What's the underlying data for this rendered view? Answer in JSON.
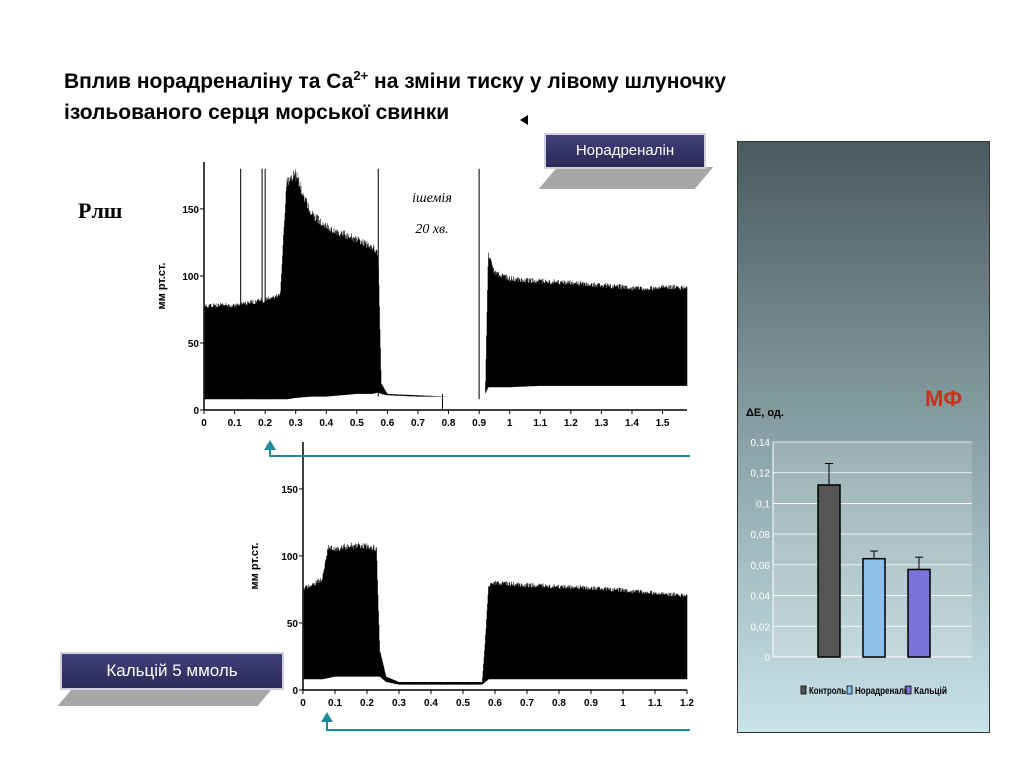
{
  "title": {
    "line1_a": "Вплив норадреналіну та Са",
    "line1_sup": "2+",
    "line1_b": " на зміни тиску у лівому шлуночку",
    "line2": "ізольованого серця морської свинки"
  },
  "plsh_label": "Рлш",
  "labels": {
    "noradrenaline": "Норадреналін",
    "calcium": "Кальцій 5 ммоль"
  },
  "ischemia": {
    "line1": "ішемія",
    "line2": "20 хв."
  },
  "mf_label": "МФ",
  "colors": {
    "label_bg": "#2f2f63",
    "arrow": "#1f8a9a",
    "trace": "#000000",
    "mf_title": "#c8321a"
  },
  "chart_data": [
    {
      "type": "line",
      "name": "top-trace",
      "ylabel": "мм рт.ст.",
      "y_ticks": [
        "0",
        "50",
        "100",
        "150"
      ],
      "x_ticks": [
        "0",
        "0.1",
        "0.2",
        "0.3",
        "0.4",
        "0.5",
        "0.6",
        "0.7",
        "0.8",
        "0.9",
        "1",
        "1.1",
        "1.2",
        "1.3",
        "1.4",
        "1.5"
      ],
      "xlim": [
        0,
        1.58
      ],
      "ylim": [
        0,
        185
      ],
      "envelope": {
        "x": [
          0,
          0.1,
          0.2,
          0.22,
          0.25,
          0.27,
          0.3,
          0.35,
          0.4,
          0.45,
          0.5,
          0.55,
          0.57,
          0.58,
          0.6,
          0.7,
          0.8,
          0.9,
          0.92,
          0.93,
          0.95,
          1.0,
          1.1,
          1.2,
          1.3,
          1.4,
          1.45,
          1.5,
          1.58
        ],
        "upper": [
          80,
          80,
          84,
          85,
          88,
          175,
          180,
          150,
          140,
          135,
          130,
          125,
          120,
          20,
          12,
          11,
          10,
          10,
          12,
          120,
          105,
          100,
          98,
          97,
          95,
          93,
          92,
          94,
          93
        ],
        "lower": [
          8,
          8,
          8,
          8,
          8,
          8,
          9,
          10,
          10,
          11,
          12,
          12,
          13,
          12,
          11,
          10,
          10,
          10,
          12,
          17,
          17,
          17,
          18,
          18,
          18,
          18,
          18,
          18,
          18
        ]
      }
    },
    {
      "type": "line",
      "name": "bottom-trace",
      "ylabel": "мм рт.ст.",
      "y_ticks": [
        "0",
        "50",
        "100",
        "150"
      ],
      "x_ticks": [
        "0",
        "0.1",
        "0.2",
        "0.3",
        "0.4",
        "0.5",
        "0.6",
        "0.7",
        "0.8",
        "0.9",
        "1",
        "1.1",
        "1.2"
      ],
      "xlim": [
        0,
        1.2
      ],
      "ylim": [
        0,
        185
      ],
      "envelope": {
        "x": [
          0,
          0.03,
          0.06,
          0.08,
          0.1,
          0.15,
          0.2,
          0.23,
          0.24,
          0.26,
          0.3,
          0.4,
          0.5,
          0.56,
          0.57,
          0.58,
          0.6,
          0.7,
          0.8,
          0.9,
          1.0,
          1.1,
          1.2
        ],
        "upper": [
          78,
          80,
          85,
          110,
          108,
          110,
          110,
          108,
          30,
          10,
          6,
          6,
          6,
          6,
          40,
          80,
          82,
          80,
          79,
          78,
          76,
          74,
          72
        ],
        "lower": [
          8,
          8,
          8,
          9,
          10,
          10,
          10,
          10,
          10,
          6,
          4,
          4,
          4,
          4,
          6,
          8,
          8,
          8,
          8,
          8,
          8,
          8,
          8
        ]
      }
    },
    {
      "type": "bar",
      "name": "mf-bar",
      "ylabel": "ΔE, од.",
      "categories": [
        "Контроль",
        "Норадреналін",
        "Кальцій"
      ],
      "values": [
        0.112,
        0.064,
        0.057
      ],
      "errors": [
        0.014,
        0.005,
        0.008
      ],
      "colors": [
        "#555555",
        "#8ec1ec",
        "#7b73d8"
      ],
      "ylim": [
        0,
        0.14
      ],
      "y_ticks": [
        "0",
        "0,02",
        "0,04",
        "0,06",
        "0,08",
        "0,1",
        "0,12",
        "0,14"
      ]
    }
  ]
}
